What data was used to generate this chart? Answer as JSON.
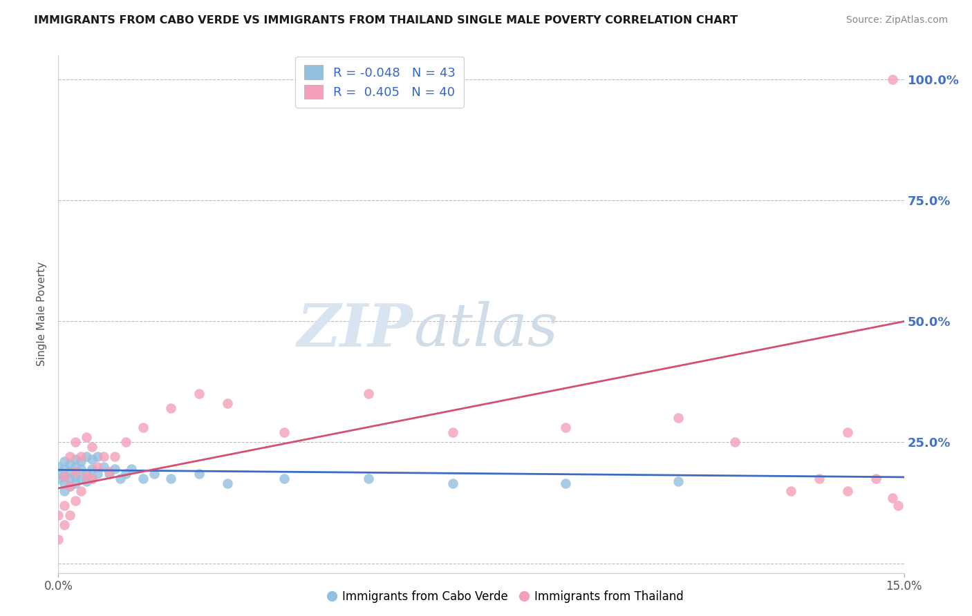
{
  "title": "IMMIGRANTS FROM CABO VERDE VS IMMIGRANTS FROM THAILAND SINGLE MALE POVERTY CORRELATION CHART",
  "source": "Source: ZipAtlas.com",
  "ylabel": "Single Male Poverty",
  "xmin": 0.0,
  "xmax": 0.15,
  "ymin": -0.02,
  "ymax": 1.05,
  "yticks": [
    0.0,
    0.25,
    0.5,
    0.75,
    1.0
  ],
  "ytick_labels": [
    "",
    "25.0%",
    "50.0%",
    "75.0%",
    "100.0%"
  ],
  "legend_r1": "R = -0.048",
  "legend_n1": "N = 43",
  "legend_r2": "R =  0.405",
  "legend_n2": "N = 40",
  "color_blue": "#92C0E0",
  "color_pink": "#F4A0B8",
  "line_blue": "#3B6BC4",
  "line_pink": "#D45070",
  "watermark_zip": "ZIP",
  "watermark_atlas": "atlas",
  "cabo_verde_x": [
    0.0,
    0.0,
    0.0,
    0.001,
    0.001,
    0.001,
    0.001,
    0.001,
    0.002,
    0.002,
    0.002,
    0.002,
    0.003,
    0.003,
    0.003,
    0.003,
    0.004,
    0.004,
    0.004,
    0.005,
    0.005,
    0.005,
    0.006,
    0.006,
    0.006,
    0.007,
    0.007,
    0.008,
    0.009,
    0.01,
    0.011,
    0.012,
    0.013,
    0.015,
    0.017,
    0.02,
    0.025,
    0.03,
    0.04,
    0.055,
    0.07,
    0.09,
    0.11
  ],
  "cabo_verde_y": [
    0.175,
    0.185,
    0.2,
    0.15,
    0.165,
    0.18,
    0.195,
    0.21,
    0.16,
    0.175,
    0.19,
    0.205,
    0.165,
    0.18,
    0.2,
    0.215,
    0.175,
    0.195,
    0.21,
    0.17,
    0.185,
    0.22,
    0.175,
    0.195,
    0.215,
    0.185,
    0.22,
    0.2,
    0.185,
    0.195,
    0.175,
    0.185,
    0.195,
    0.175,
    0.185,
    0.175,
    0.185,
    0.165,
    0.175,
    0.175,
    0.165,
    0.165,
    0.17
  ],
  "thailand_x": [
    0.0,
    0.0,
    0.001,
    0.001,
    0.001,
    0.002,
    0.002,
    0.002,
    0.003,
    0.003,
    0.003,
    0.004,
    0.004,
    0.005,
    0.005,
    0.006,
    0.006,
    0.007,
    0.008,
    0.009,
    0.01,
    0.012,
    0.015,
    0.02,
    0.025,
    0.03,
    0.04,
    0.055,
    0.07,
    0.09,
    0.11,
    0.12,
    0.13,
    0.135,
    0.14,
    0.145,
    0.148,
    0.149,
    0.14,
    0.148
  ],
  "thailand_y": [
    0.05,
    0.1,
    0.08,
    0.12,
    0.18,
    0.1,
    0.16,
    0.22,
    0.13,
    0.19,
    0.25,
    0.15,
    0.22,
    0.18,
    0.26,
    0.175,
    0.24,
    0.2,
    0.22,
    0.19,
    0.22,
    0.25,
    0.28,
    0.32,
    0.35,
    0.33,
    0.27,
    0.35,
    0.27,
    0.28,
    0.3,
    0.25,
    0.15,
    0.175,
    0.15,
    0.175,
    0.135,
    0.12,
    0.27,
    1.0
  ],
  "line_blue_x0": 0.0,
  "line_blue_y0": 0.193,
  "line_blue_x1": 0.15,
  "line_blue_y1": 0.178,
  "line_pink_x0": 0.0,
  "line_pink_y0": 0.155,
  "line_pink_x1": 0.15,
  "line_pink_y1": 0.5
}
